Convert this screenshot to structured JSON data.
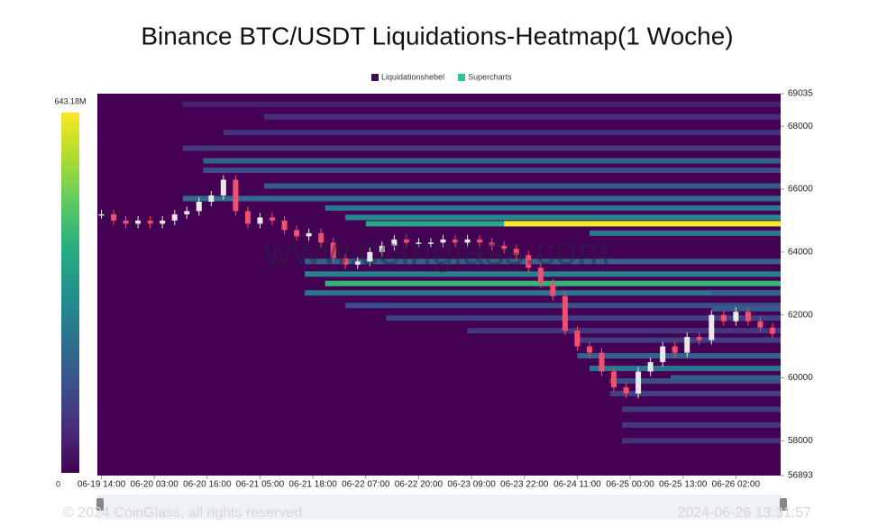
{
  "chart_data": {
    "type": "heatmap",
    "title": "Binance BTC/USDT Liquidations-Heatmap(1 Woche)",
    "legend": [
      {
        "name": "Liquidationshebel",
        "color": "#3b0f50"
      },
      {
        "name": "Supercharts",
        "color": "#2fc88b"
      }
    ],
    "colorscale": [
      "#440154",
      "#472d7b",
      "#3b528b",
      "#2c728e",
      "#21918c",
      "#28ae80",
      "#5ec962",
      "#addc30",
      "#fde725"
    ],
    "zlim": [
      {
        "value": 0,
        "label": "0"
      },
      {
        "value": 643180000,
        "label": "643.18M"
      }
    ],
    "ylim": [
      56893,
      69035
    ],
    "yticks": [
      69035,
      68000,
      66000,
      64000,
      62000,
      60000,
      58000,
      56893
    ],
    "xlim": [
      -1,
      167
    ],
    "xticks": [
      {
        "value": 0,
        "label": "06-19 14:00"
      },
      {
        "value": 13,
        "label": "06-20 03:00"
      },
      {
        "value": 26,
        "label": "06-20 16:00"
      },
      {
        "value": 39,
        "label": "06-21 05:00"
      },
      {
        "value": 52,
        "label": "06-21 18:00"
      },
      {
        "value": 65,
        "label": "06-22 07:00"
      },
      {
        "value": 78,
        "label": "06-22 20:00"
      },
      {
        "value": 91,
        "label": "06-23 09:00"
      },
      {
        "value": 104,
        "label": "06-23 22:00"
      },
      {
        "value": 117,
        "label": "06-24 11:00"
      },
      {
        "value": 130,
        "label": "06-25 00:00"
      },
      {
        "value": 143,
        "label": "06-25 13:00"
      },
      {
        "value": 156,
        "label": "06-26 02:00"
      }
    ],
    "bands": {
      "price": [
        68700,
        68300,
        67800,
        67300,
        66900,
        66600,
        66100,
        65700,
        65400,
        65100,
        64900,
        64900,
        64600,
        63700,
        63300,
        63000,
        62700,
        62300,
        61900,
        61500,
        62700,
        62200,
        61200,
        60700,
        60300,
        59900,
        59500,
        59000,
        58500,
        58000,
        60000
      ],
      "start": [
        20,
        40,
        30,
        20,
        25,
        25,
        40,
        20,
        55,
        60,
        65,
        99,
        120,
        50,
        50,
        55,
        50,
        60,
        70,
        90,
        150,
        150,
        117,
        117,
        120,
        125,
        125,
        128,
        128,
        128,
        140
      ],
      "values": [
        60000000,
        80000000,
        90000000,
        110000000,
        200000000,
        150000000,
        180000000,
        220000000,
        250000000,
        300000000,
        380000000,
        640000000,
        250000000,
        200000000,
        280000000,
        420000000,
        250000000,
        150000000,
        120000000,
        100000000,
        200000000,
        180000000,
        120000000,
        200000000,
        250000000,
        150000000,
        120000000,
        110000000,
        100000000,
        90000000,
        180000000
      ]
    },
    "price": {
      "x": [
        0,
        3,
        6,
        9,
        12,
        15,
        18,
        21,
        24,
        27,
        30,
        33,
        36,
        39,
        42,
        45,
        48,
        51,
        54,
        57,
        60,
        63,
        66,
        69,
        72,
        75,
        78,
        81,
        84,
        87,
        90,
        93,
        96,
        99,
        102,
        105,
        108,
        111,
        114,
        117,
        120,
        123,
        126,
        129,
        132,
        135,
        138,
        141,
        144,
        147,
        150,
        153,
        156,
        159,
        162,
        165
      ],
      "values": [
        65200,
        65000,
        64900,
        65000,
        64900,
        65000,
        65200,
        65300,
        65600,
        65800,
        66300,
        65300,
        64900,
        65100,
        65000,
        64700,
        64500,
        64600,
        64300,
        63800,
        63600,
        63700,
        64000,
        64200,
        64400,
        64300,
        64300,
        64300,
        64400,
        64300,
        64400,
        64300,
        64200,
        64100,
        63900,
        63500,
        63000,
        62600,
        61500,
        61000,
        60800,
        60200,
        59700,
        59500,
        60200,
        60500,
        61000,
        60800,
        61300,
        61200,
        62000,
        61800,
        62100,
        61800,
        61600,
        61400
      ],
      "up_color": "#e8e8e8",
      "down_color": "#f0506e"
    },
    "watermark": "www.coinglass.com",
    "copyright": "© 2024 CoinGlass, all rights reserved",
    "timestamp": "2024-06-26 13:31:57"
  }
}
